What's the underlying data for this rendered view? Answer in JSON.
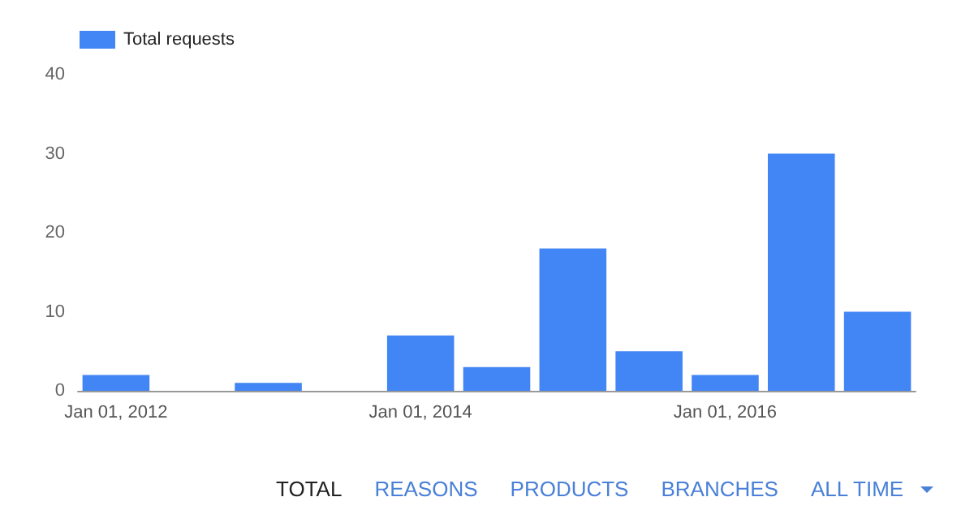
{
  "chart_data": {
    "type": "bar",
    "categories": [
      "Jan 01, 2012",
      null,
      null,
      null,
      "Jan 01, 2014",
      null,
      null,
      null,
      "Jan 01, 2016",
      null,
      null
    ],
    "series": [
      {
        "name": "Total requests",
        "color": "#4285f4",
        "values": [
          2,
          0,
          1,
          0,
          7,
          3,
          18,
          5,
          2,
          30,
          10
        ]
      }
    ],
    "ylim": [
      0,
      40
    ],
    "yticks": [
      0,
      10,
      20,
      30,
      40
    ],
    "grid": false,
    "legend": "top left",
    "annotations": [
      "TOTAL",
      "REASONS",
      "PRODUCTS",
      "BRANCHES",
      "ALL TIME"
    ]
  }
}
